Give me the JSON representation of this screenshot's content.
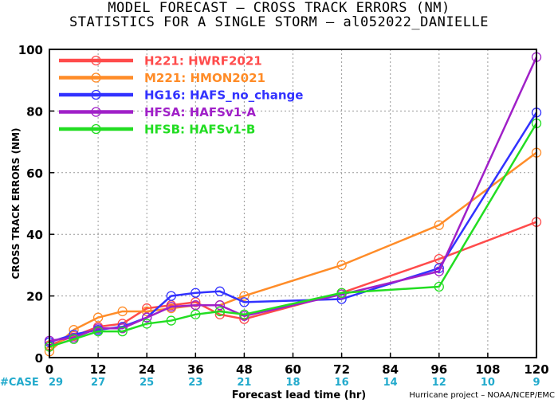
{
  "title_line1": "MODEL FORECAST – CROSS TRACK ERRORS (NM)",
  "title_line2": "STATISTICS FOR A SINGLE STORM – al052022_DANIELLE",
  "credit": "Hurricane project – NOAA/NCEP/EMC",
  "case_label": "#CASE",
  "chart_data": {
    "type": "line",
    "xlabel": "Forecast lead time (hr)",
    "ylabel": "CROSS TRACK ERRORS (NM)",
    "xlim": [
      0,
      120
    ],
    "ylim": [
      0,
      100
    ],
    "xticks": [
      0,
      12,
      24,
      36,
      48,
      60,
      72,
      84,
      96,
      108,
      120
    ],
    "yticks": [
      0,
      20,
      40,
      60,
      80,
      100
    ],
    "grid": true,
    "legend_position": "top-left",
    "case_counts": [
      {
        "x": 0,
        "n": "29"
      },
      {
        "x": 12,
        "n": "27"
      },
      {
        "x": 24,
        "n": "25"
      },
      {
        "x": 36,
        "n": "23"
      },
      {
        "x": 48,
        "n": "21"
      },
      {
        "x": 60,
        "n": "18"
      },
      {
        "x": 72,
        "n": "16"
      },
      {
        "x": 84,
        "n": "14"
      },
      {
        "x": 96,
        "n": "12"
      },
      {
        "x": 108,
        "n": "10"
      },
      {
        "x": 120,
        "n": "9"
      }
    ],
    "series": [
      {
        "name": "H221: HWRF2021",
        "color": "#ff4b4b",
        "x": [
          0,
          6,
          12,
          18,
          24,
          30,
          36,
          42,
          48,
          72,
          96,
          120
        ],
        "y": [
          4.0,
          7.0,
          10.0,
          11.0,
          16.0,
          17.0,
          18.0,
          14.0,
          12.5,
          21.0,
          32.0,
          44.0
        ]
      },
      {
        "name": "M221: HMON2021",
        "color": "#ff8c28",
        "x": [
          0,
          6,
          12,
          18,
          24,
          30,
          36,
          42,
          48,
          72,
          96,
          120
        ],
        "y": [
          2.0,
          9.0,
          13.0,
          15.0,
          15.0,
          16.0,
          17.0,
          17.0,
          20.0,
          30.0,
          43.0,
          66.5
        ]
      },
      {
        "name": "HG16: HAFS_no_change",
        "color": "#3232ff",
        "x": [
          0,
          6,
          12,
          18,
          24,
          30,
          36,
          42,
          48,
          72,
          96,
          120
        ],
        "y": [
          5.0,
          7.5,
          9.0,
          10.0,
          13.0,
          20.0,
          21.0,
          21.5,
          18.0,
          19.0,
          29.0,
          79.5
        ]
      },
      {
        "name": "HFSA: HAFSv1-A",
        "color": "#a020c8",
        "x": [
          0,
          6,
          12,
          18,
          24,
          30,
          36,
          42,
          48,
          72,
          96,
          120
        ],
        "y": [
          5.5,
          6.5,
          9.5,
          9.5,
          13.0,
          16.5,
          17.0,
          17.0,
          13.5,
          20.5,
          28.0,
          97.5
        ]
      },
      {
        "name": "HFSB: HAFSv1-B",
        "color": "#22dd22",
        "x": [
          0,
          6,
          12,
          18,
          24,
          30,
          36,
          42,
          48,
          72,
          96,
          120
        ],
        "y": [
          3.5,
          6.0,
          8.5,
          8.5,
          11.0,
          12.0,
          14.0,
          15.0,
          14.0,
          21.0,
          23.0,
          76.0
        ]
      }
    ]
  }
}
